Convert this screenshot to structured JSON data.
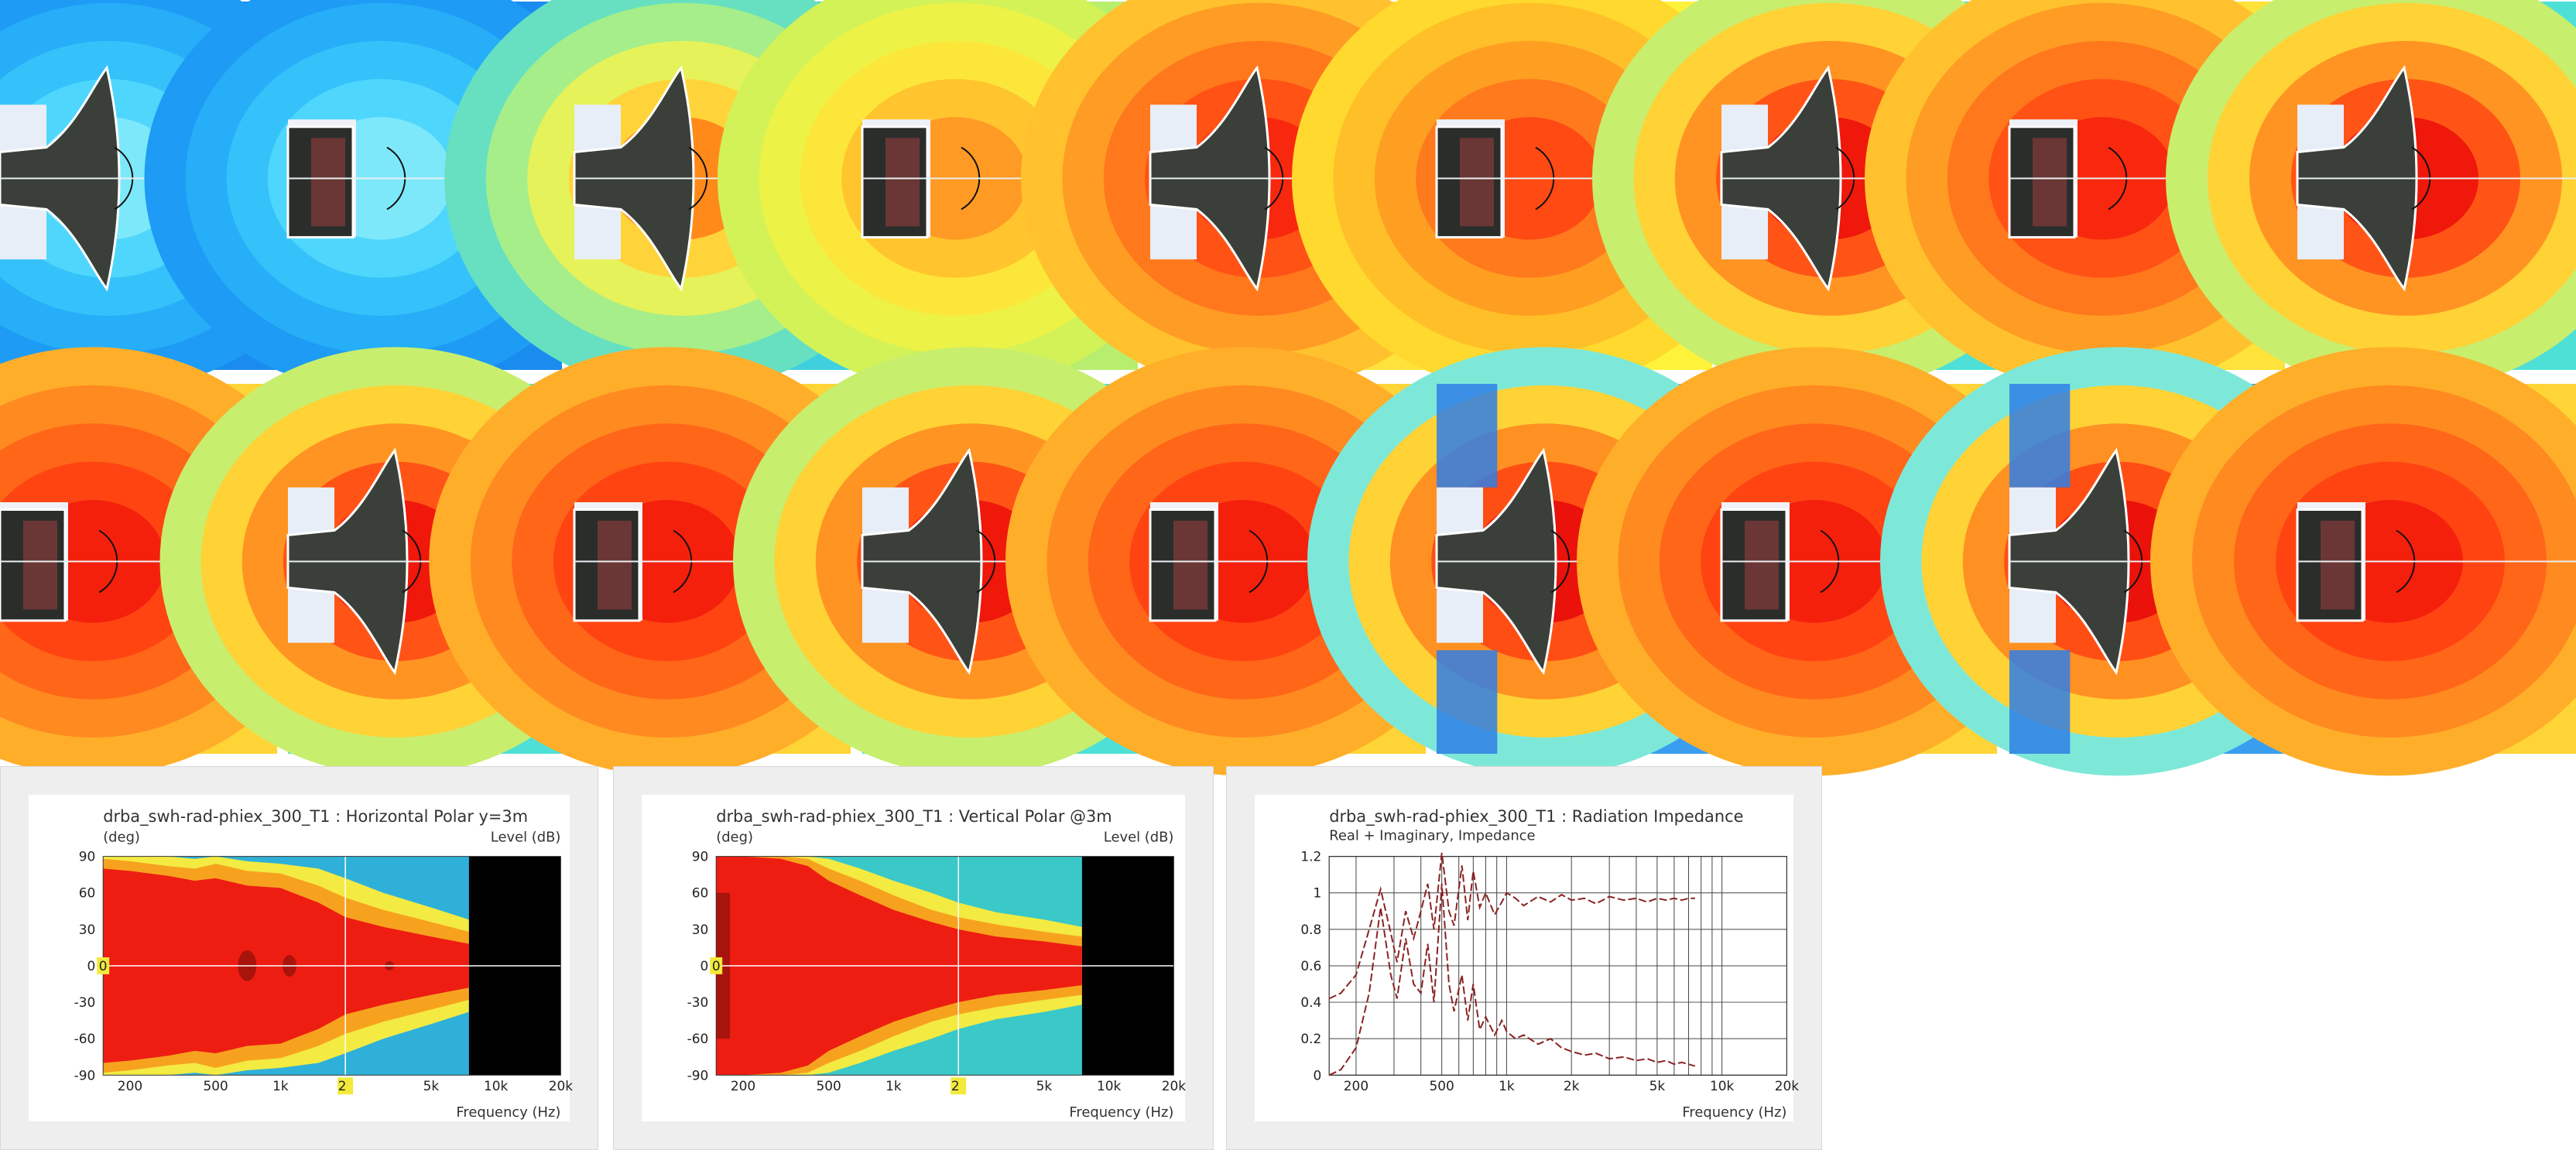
{
  "gallery": {
    "rows": [
      {
        "tiles": [
          {
            "driver": "horn",
            "palette": "blue"
          },
          {
            "driver": "box",
            "palette": "blue"
          },
          {
            "driver": "horn",
            "palette": "cyan"
          },
          {
            "driver": "box",
            "palette": "lime"
          },
          {
            "driver": "horn",
            "palette": "orange"
          },
          {
            "driver": "box",
            "palette": "yellow"
          },
          {
            "driver": "horn",
            "palette": "redcyan"
          },
          {
            "driver": "box",
            "palette": "orange"
          },
          {
            "driver": "horn",
            "palette": "redcyan"
          }
        ]
      },
      {
        "tiles": [
          {
            "driver": "box",
            "palette": "red"
          },
          {
            "driver": "horn",
            "palette": "redcyan"
          },
          {
            "driver": "box",
            "palette": "red"
          },
          {
            "driver": "horn",
            "palette": "redcyan"
          },
          {
            "driver": "box",
            "palette": "red"
          },
          {
            "driver": "horn",
            "palette": "bluelobes"
          },
          {
            "driver": "box",
            "palette": "red"
          },
          {
            "driver": "horn",
            "palette": "bluelobes"
          },
          {
            "driver": "box",
            "palette": "red"
          }
        ]
      }
    ]
  },
  "chart_data": [
    {
      "type": "heatmap",
      "title": "drba_swh-rad-phiex_300_T1 : Horizontal Polar y=3m",
      "ylabel": "(deg)",
      "zlabel": "Level  (dB)",
      "xlabel": "Frequency  (Hz)",
      "xscale": "log",
      "xlim": [
        150,
        20000
      ],
      "ylim": [
        -90,
        90
      ],
      "yticks": [
        90,
        60,
        30,
        0,
        -30,
        -60,
        -90
      ],
      "xticks": [
        "200",
        "500",
        "1k",
        "2k",
        "5k",
        "10k",
        "20k"
      ],
      "marker_labels": [
        "0",
        "2"
      ],
      "data_limit_hz": 7500,
      "beamwidth_deg": {
        "freq": [
          150,
          200,
          300,
          400,
          500,
          700,
          1000,
          1500,
          2000,
          3000,
          5000,
          7500
        ],
        "red": [
          80,
          78,
          74,
          70,
          72,
          66,
          64,
          52,
          40,
          32,
          24,
          18
        ],
        "orange": [
          88,
          86,
          82,
          80,
          84,
          78,
          76,
          66,
          56,
          46,
          36,
          28
        ],
        "yellow": [
          90,
          90,
          90,
          88,
          90,
          86,
          84,
          80,
          72,
          60,
          48,
          38
        ]
      }
    },
    {
      "type": "heatmap",
      "title": "drba_swh-rad-phiex_300_T1 : Vertical Polar @3m",
      "ylabel": "(deg)",
      "zlabel": "Level  (dB)",
      "xlabel": "Frequency  (Hz)",
      "xscale": "log",
      "xlim": [
        150,
        20000
      ],
      "ylim": [
        -90,
        90
      ],
      "yticks": [
        90,
        60,
        30,
        0,
        -30,
        -60,
        -90
      ],
      "xticks": [
        "200",
        "500",
        "1k",
        "2k",
        "5k",
        "10k",
        "20k"
      ],
      "marker_labels": [
        "0",
        "2"
      ],
      "data_limit_hz": 7500,
      "beamwidth_deg": {
        "freq": [
          150,
          200,
          300,
          400,
          500,
          700,
          1000,
          1500,
          2000,
          3000,
          5000,
          7500
        ],
        "red": [
          90,
          90,
          88,
          82,
          70,
          58,
          46,
          36,
          30,
          24,
          20,
          16
        ],
        "orange": [
          90,
          90,
          90,
          88,
          80,
          70,
          58,
          46,
          40,
          34,
          28,
          24
        ],
        "yellow": [
          90,
          90,
          90,
          90,
          88,
          80,
          70,
          60,
          52,
          44,
          38,
          32
        ]
      }
    },
    {
      "type": "line",
      "title": "drba_swh-rad-phiex_300_T1 : Radiation Impedance",
      "subtitle": "Real + Imaginary, Impedance",
      "xscale": "log",
      "xlim": [
        150,
        20000
      ],
      "ylim": [
        0,
        1.2
      ],
      "yticks": [
        "1.2",
        "1",
        "0.8",
        "0.6",
        "0.4",
        "0.2",
        "0"
      ],
      "xticks": [
        "200",
        "500",
        "1k",
        "2k",
        "5k",
        "10k",
        "20k"
      ],
      "xlabel": "Frequency  (Hz)",
      "series": [
        {
          "x": [
            150,
            170,
            200,
            230,
            260,
            290,
            310,
            340,
            370,
            400,
            430,
            460,
            500,
            540,
            570,
            620,
            660,
            700,
            750,
            800,
            880,
            950,
            1000,
            1100,
            1200,
            1400,
            1600,
            1800,
            2000,
            2300,
            2600,
            3000,
            3500,
            4000,
            4500,
            5000,
            5500,
            6000,
            6500,
            7000,
            7500
          ],
          "y": [
            0.42,
            0.45,
            0.55,
            0.8,
            1.02,
            0.78,
            0.62,
            0.9,
            0.75,
            0.9,
            1.05,
            0.8,
            1.22,
            0.9,
            0.82,
            1.15,
            0.85,
            1.12,
            0.92,
            1.0,
            0.88,
            0.95,
            1.0,
            0.97,
            0.93,
            0.98,
            0.95,
            0.99,
            0.96,
            0.97,
            0.94,
            0.98,
            0.96,
            0.97,
            0.95,
            0.97,
            0.96,
            0.97,
            0.96,
            0.97,
            0.97
          ]
        },
        {
          "x": [
            150,
            170,
            200,
            230,
            260,
            290,
            310,
            340,
            370,
            400,
            430,
            460,
            500,
            540,
            570,
            620,
            660,
            700,
            750,
            800,
            880,
            950,
            1000,
            1100,
            1200,
            1400,
            1600,
            1800,
            2000,
            2300,
            2600,
            3000,
            3500,
            4000,
            4500,
            5000,
            5500,
            6000,
            6500,
            7000,
            7500
          ],
          "y": [
            0.0,
            0.03,
            0.15,
            0.45,
            0.92,
            0.55,
            0.42,
            0.75,
            0.5,
            0.45,
            0.72,
            0.4,
            1.05,
            0.5,
            0.35,
            0.55,
            0.3,
            0.5,
            0.25,
            0.32,
            0.22,
            0.3,
            0.24,
            0.2,
            0.22,
            0.17,
            0.2,
            0.15,
            0.13,
            0.11,
            0.12,
            0.09,
            0.1,
            0.08,
            0.09,
            0.07,
            0.08,
            0.06,
            0.07,
            0.06,
            0.05
          ]
        }
      ]
    }
  ]
}
